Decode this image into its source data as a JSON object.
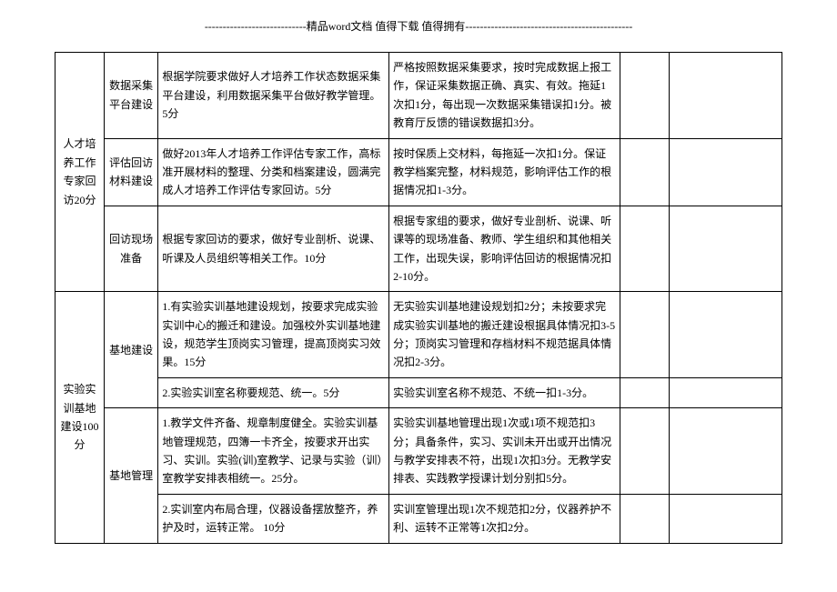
{
  "header": "----------------------------精品word文档 值得下载 值得拥有----------------------------------------------",
  "table": {
    "sections": [
      {
        "category": "人才培养工作专家回访20分",
        "rows": [
          {
            "subitem": "数据采集平台建设",
            "content": "根据学院要求做好人才培养工作状态数据采集平台建设，利用数据采集平台做好教学管理。5分",
            "criteria": "严格按照数据采集要求，按时完成数据上报工作，保证采集数据正确、真实、有效。拖延1次扣1分，每出现一次数据采集错误扣1分。被教育厅反馈的错误数据扣3分。"
          },
          {
            "subitem": "评估回访材料建设",
            "content": "做好2013年人才培养工作评估专家工作，高标准开展材料的整理、分类和档案建设，圆满完成人才培养工作评估专家回访。5分",
            "criteria": "按时保质上交材料，每拖延一次扣1分。保证教学档案完整，材料规范，影响评估工作的根据情况扣1-3分。"
          },
          {
            "subitem": "回访现场准备",
            "content": "根据专家回访的要求，做好专业剖析、说课、听课及人员组织等相关工作。10分",
            "criteria": "根据专家组的要求，做好专业剖析、说课、听课等的现场准备、教师、学生组织和其他相关工作，出现失误，影响评估回访的根据情况扣2-10分。"
          }
        ]
      },
      {
        "category": "实验实训基地建设100分",
        "rows": [
          {
            "subitem": "基地建设",
            "content": "1.有实验实训基地建设规划，按要求完成实验实训中心的搬迁和建设。加强校外实训基地建设，规范学生顶岗实习管理，提高顶岗实习效果。15分",
            "criteria": "无实验实训基地建设规划扣2分；未按要求完成实验实训基地的搬迁建设根据具体情况扣3-5分；顶岗实习管理和存档材料不规范据具体情况扣2-3分。"
          },
          {
            "subitem_continue": true,
            "content": "2.实验实训室名称要规范、统一。5分",
            "criteria": "实验实训室名称不规范、不统一扣1-3分。"
          },
          {
            "subitem": "基地管理",
            "content": "1.教学文件齐备、规章制度健全。实验实训基地管理规范，四簿一卡齐全，按要求开出实习、实训。实验(训)室教学、记录与实验（训）室教学安排表相统一。25分。",
            "criteria": "实验实训基地管理出现1次或1项不规范扣3分；具备条件，实习、实训未开出或开出情况与教学安排表不符，出现1次扣3分。无教学安排表、实践教学授课计划分别扣5分。"
          },
          {
            "subitem_continue": true,
            "content": "2.实训室内布局合理，仪器设备摆放整齐，养护及时，运转正常。\n10分",
            "criteria": "实训室管理出现1次不规范扣2分，仪器养护不利、运转不正常等1次扣2分。"
          }
        ]
      }
    ]
  }
}
